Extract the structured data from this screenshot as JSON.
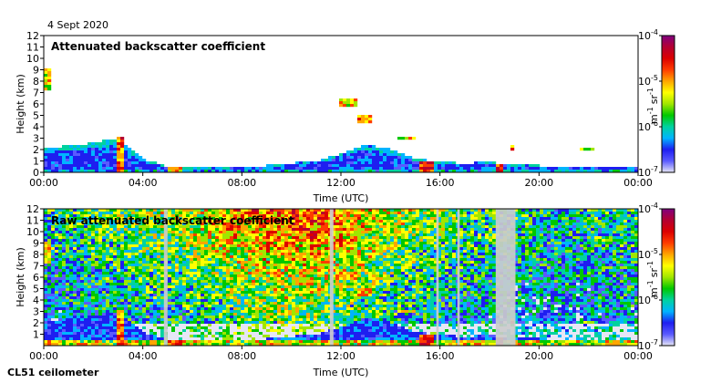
{
  "date_label": "4 Sept 2020",
  "footer_label": "CL51 ceilometer",
  "colors": {
    "colormap": [
      "#e6e6f5",
      "#5a5aff",
      "#1e1ef0",
      "#00b4ff",
      "#00d2a0",
      "#00c800",
      "#a0e600",
      "#ffff00",
      "#ffa500",
      "#ff3c00",
      "#dc0000",
      "#b40032",
      "#800080"
    ],
    "no_signal": "#ffffff",
    "masked": "#cccccc"
  },
  "chart_data": [
    {
      "type": "heatmap",
      "title": "Attenuated backscatter coefficient",
      "xlabel": "Time (UTC)",
      "ylabel": "Height (km)",
      "x_ticks": [
        "00:00",
        "04:00",
        "08:00",
        "12:00",
        "16:00",
        "20:00",
        "00:00"
      ],
      "y_ticks": [
        "0",
        "1",
        "2",
        "3",
        "4",
        "5",
        "6",
        "7",
        "8",
        "9",
        "10",
        "11",
        "12"
      ],
      "xlim_hours": [
        0,
        24
      ],
      "ylim_km": [
        0,
        12
      ],
      "colorbar": {
        "scale": "log",
        "range": [
          1e-07,
          0.0001
        ],
        "tick_labels": [
          {
            "base": "10",
            "exp": "-4"
          },
          {
            "base": "10",
            "exp": "-5"
          },
          {
            "base": "10",
            "exp": "-6"
          },
          {
            "base": "10",
            "exp": "-7"
          }
        ],
        "unit_label": {
          "m": "m",
          "m_exp": "-1",
          "sr": "sr",
          "sr_exp": "-1"
        }
      },
      "boundary_layer_top_km": [
        [
          0,
          2.2
        ],
        [
          1,
          2.3
        ],
        [
          2,
          2.6
        ],
        [
          3,
          3.0
        ],
        [
          4,
          1.2
        ],
        [
          5,
          0.5
        ],
        [
          6,
          0.4
        ],
        [
          7,
          0.4
        ],
        [
          8,
          0.5
        ],
        [
          9,
          0.6
        ],
        [
          10,
          0.8
        ],
        [
          11,
          1.0
        ],
        [
          12,
          1.6
        ],
        [
          13,
          2.5
        ],
        [
          14,
          2.0
        ],
        [
          15,
          1.2
        ],
        [
          16,
          0.9
        ],
        [
          17,
          0.8
        ],
        [
          18,
          0.9
        ],
        [
          19,
          0.7
        ],
        [
          20,
          0.6
        ],
        [
          21,
          0.6
        ],
        [
          22,
          0.6
        ],
        [
          23,
          0.6
        ],
        [
          24,
          0.5
        ]
      ],
      "cloud_features": [
        {
          "start_h": 0.0,
          "end_h": 0.35,
          "base_km": 7.2,
          "top_km": 9.0,
          "intensity": 0.75
        },
        {
          "start_h": 2.9,
          "end_h": 3.3,
          "base_km": 0.0,
          "top_km": 3.2,
          "intensity": 0.9
        },
        {
          "start_h": 5.0,
          "end_h": 5.6,
          "base_km": 0.1,
          "top_km": 0.6,
          "intensity": 0.85
        },
        {
          "start_h": 11.9,
          "end_h": 12.6,
          "base_km": 5.7,
          "top_km": 6.4,
          "intensity": 0.8
        },
        {
          "start_h": 12.7,
          "end_h": 13.3,
          "base_km": 4.2,
          "top_km": 5.0,
          "intensity": 0.8
        },
        {
          "start_h": 14.3,
          "end_h": 15.0,
          "base_km": 2.8,
          "top_km": 3.2,
          "intensity": 0.75
        },
        {
          "start_h": 15.2,
          "end_h": 15.8,
          "base_km": 0.1,
          "top_km": 0.9,
          "intensity": 0.95
        },
        {
          "start_h": 18.2,
          "end_h": 18.6,
          "base_km": 0.0,
          "top_km": 0.8,
          "intensity": 1.0
        },
        {
          "start_h": 18.8,
          "end_h": 19.0,
          "base_km": 1.8,
          "top_km": 2.4,
          "intensity": 0.85
        },
        {
          "start_h": 21.7,
          "end_h": 22.2,
          "base_km": 1.8,
          "top_km": 2.2,
          "intensity": 0.7
        }
      ]
    },
    {
      "type": "heatmap",
      "title": "Raw attenuated backscatter coefficient",
      "xlabel": "Time (UTC)",
      "ylabel": "Height (km)",
      "x_ticks": [
        "00:00",
        "04:00",
        "08:00",
        "12:00",
        "16:00",
        "20:00",
        "00:00"
      ],
      "y_ticks": [
        "1",
        "2",
        "3",
        "4",
        "5",
        "6",
        "7",
        "8",
        "9",
        "10",
        "11",
        "12"
      ],
      "xlim_hours": [
        0,
        24
      ],
      "ylim_km": [
        0,
        12
      ],
      "colorbar": {
        "scale": "log",
        "range": [
          1e-07,
          0.0001
        ],
        "tick_labels": [
          {
            "base": "10",
            "exp": "-4"
          },
          {
            "base": "10",
            "exp": "-5"
          },
          {
            "base": "10",
            "exp": "-6"
          },
          {
            "base": "10",
            "exp": "-7"
          }
        ],
        "unit_label": {
          "m": "m",
          "m_exp": "-1",
          "sr": "sr",
          "sr_exp": "-1"
        }
      },
      "noise_intensity_by_hour": [
        [
          0,
          0.38
        ],
        [
          1,
          0.4
        ],
        [
          2,
          0.42
        ],
        [
          3,
          0.45
        ],
        [
          4,
          0.5
        ],
        [
          5,
          0.5
        ],
        [
          6,
          0.55
        ],
        [
          7,
          0.62
        ],
        [
          8,
          0.68
        ],
        [
          9,
          0.72
        ],
        [
          10,
          0.75
        ],
        [
          11,
          0.74
        ],
        [
          12,
          0.7
        ],
        [
          13,
          0.62
        ],
        [
          14,
          0.55
        ],
        [
          15,
          0.5
        ],
        [
          16,
          0.48
        ],
        [
          17,
          0.42
        ],
        [
          18,
          0.4
        ],
        [
          19,
          0.35
        ],
        [
          20,
          0.34
        ],
        [
          21,
          0.34
        ],
        [
          22,
          0.36
        ],
        [
          23,
          0.38
        ],
        [
          24,
          0.4
        ]
      ],
      "masked_periods_h": [
        [
          4.85,
          5.0
        ],
        [
          11.55,
          11.7
        ],
        [
          15.85,
          15.95
        ],
        [
          16.7,
          16.8
        ],
        [
          18.25,
          19.05
        ]
      ]
    }
  ]
}
